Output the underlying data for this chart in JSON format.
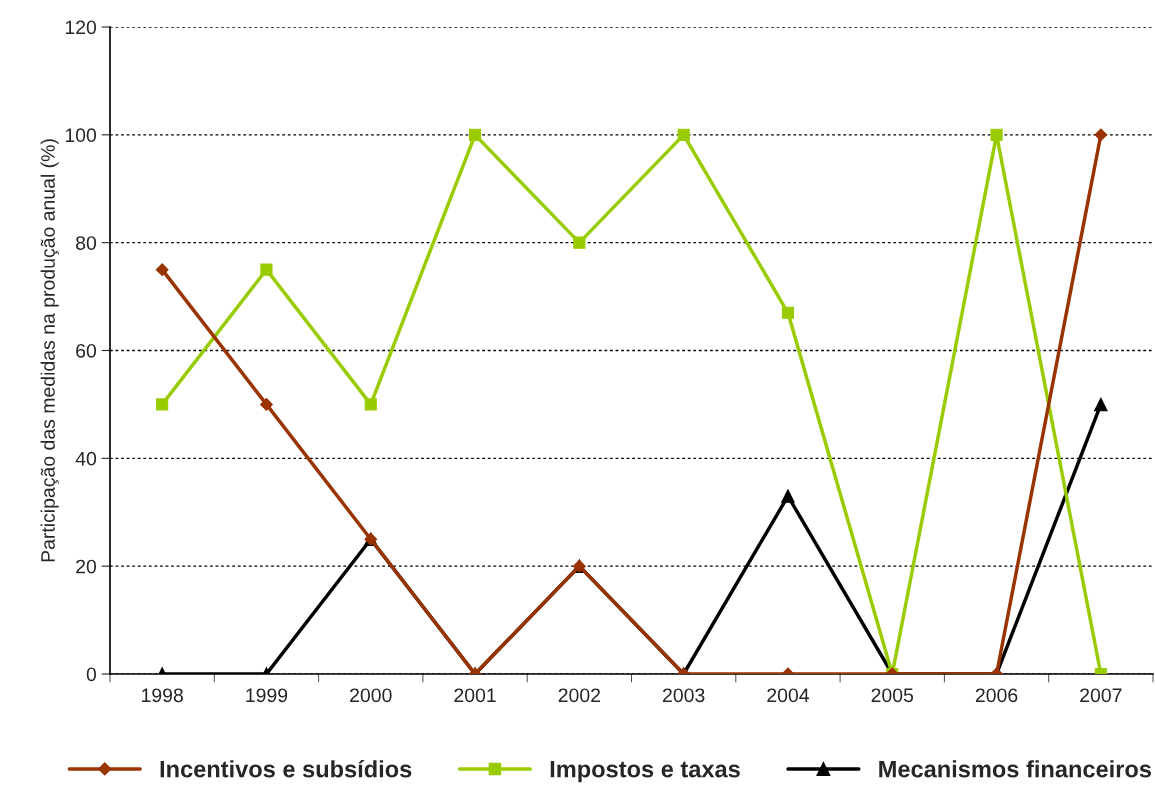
{
  "chart_data": {
    "type": "line",
    "ylabel": "Participação das medidas na produção anual (%)",
    "categories": [
      "1998",
      "1999",
      "2000",
      "2001",
      "2002",
      "2003",
      "2004",
      "2005",
      "2006",
      "2007"
    ],
    "series": [
      {
        "name": "Incentivos e subsídios",
        "color": "#993300",
        "marker": "diamond",
        "values": [
          75,
          50,
          25,
          0,
          20,
          0,
          0,
          0,
          0,
          100
        ]
      },
      {
        "name": "Impostos e taxas",
        "color": "#99cc00",
        "marker": "square",
        "values": [
          50,
          75,
          50,
          100,
          80,
          100,
          67,
          0,
          100,
          0
        ]
      },
      {
        "name": "Mecanismos financeiros",
        "color": "#000000",
        "marker": "triangle",
        "values": [
          0,
          0,
          25,
          0,
          20,
          0,
          33,
          0,
          0,
          50
        ]
      }
    ],
    "ylim": [
      0,
      120
    ],
    "yticks": [
      0,
      20,
      40,
      60,
      80,
      100,
      120
    ],
    "grid": "y",
    "legend": "bottom"
  }
}
